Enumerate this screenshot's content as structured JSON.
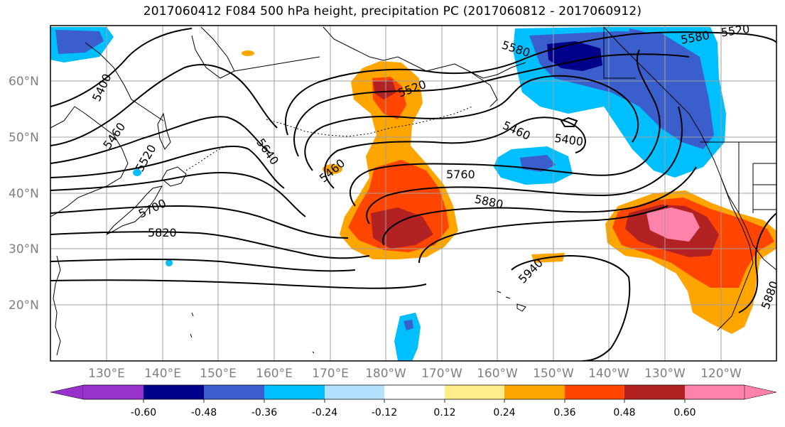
{
  "title": "2017060412 F084 500 hPa height, precipitation PC (2017060812 - 2017060912)",
  "lat_labels": [
    "60°N",
    "50°N",
    "40°N",
    "30°N",
    "20°N"
  ],
  "lon_labels": [
    "130°E",
    "140°E",
    "150°E",
    "160°E",
    "170°E",
    "180°W",
    "170°W",
    "160°W",
    "150°W",
    "140°W",
    "130°W",
    "120°W"
  ],
  "contour_labels": [
    "5400",
    "5460",
    "5520",
    "5700",
    "5820",
    "5640",
    "5460",
    "5520",
    "5580",
    "5580",
    "5520",
    "5460",
    "5400",
    "5760",
    "5880",
    "5940",
    "5880"
  ],
  "colorbar": {
    "colors": [
      "#9932cc",
      "#00008b",
      "#3a5fcd",
      "#00bfff",
      "#b0e2ff",
      "#ffffff",
      "#ffec8b",
      "#ffa500",
      "#ff4500",
      "#b22222",
      "#ff82ab"
    ],
    "tick_labels": [
      "-0.60",
      "-0.48",
      "-0.36",
      "-0.24",
      "-0.12",
      "0.12",
      "0.24",
      "0.36",
      "0.48",
      "0.60"
    ]
  },
  "colors": {
    "grid": "#a0a0a0",
    "coast": "#000000",
    "contour": "#000000",
    "axis_label": "#7f7f7f"
  }
}
